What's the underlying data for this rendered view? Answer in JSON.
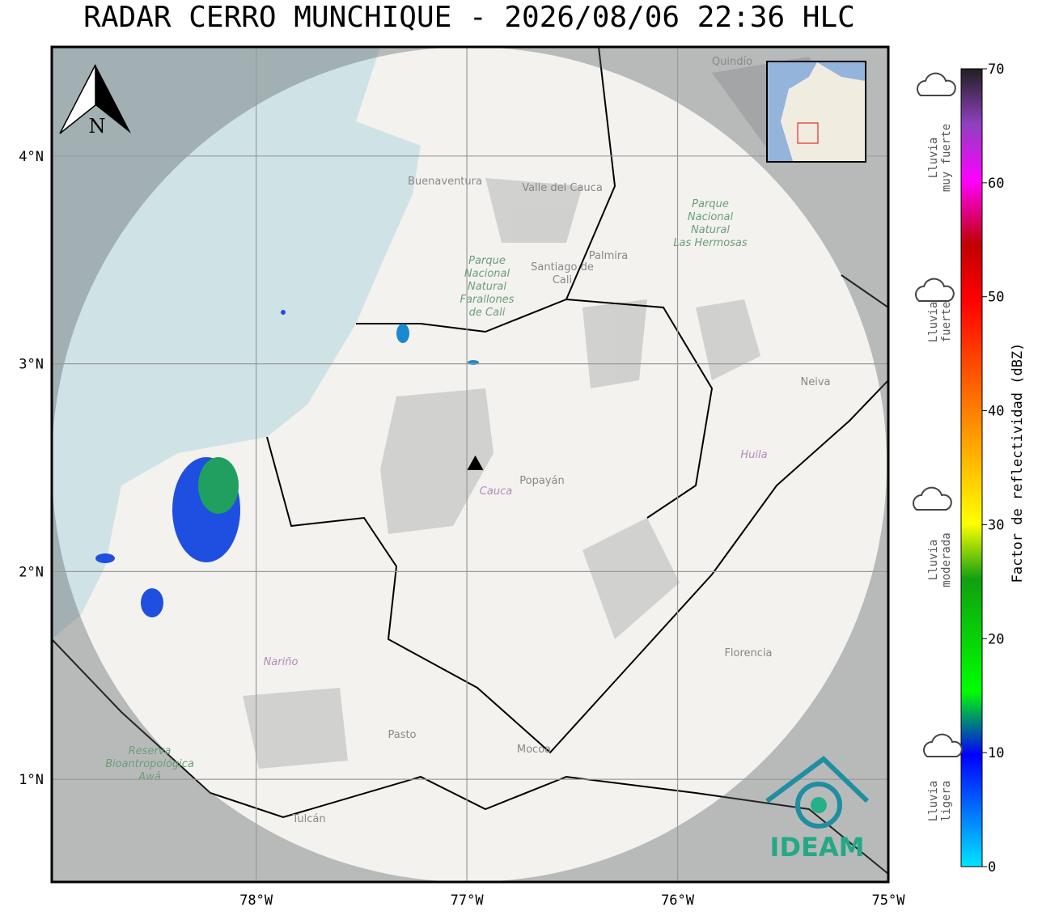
{
  "title": "RADAR CERRO MUNCHIQUE - 2026/08/06 22:36 HLC",
  "map": {
    "xlim": [
      -78.97,
      -75.0
    ],
    "ylim": [
      0.506,
      4.525
    ],
    "xticks": [
      {
        "value": -78,
        "label": "78°W"
      },
      {
        "value": -77,
        "label": "77°W"
      },
      {
        "value": -76,
        "label": "76°W"
      },
      {
        "value": -75,
        "label": "75°W"
      }
    ],
    "yticks": [
      {
        "value": 4,
        "label": "4°N"
      },
      {
        "value": 3,
        "label": "3°N"
      },
      {
        "value": 2,
        "label": "2°N"
      },
      {
        "value": 1,
        "label": "1°N"
      }
    ],
    "radar_site": {
      "lon": -76.96,
      "lat": 2.52
    },
    "north_label": "N",
    "logo": "IDEAM",
    "places": [
      {
        "lines": [
          "Quindío"
        ]
      },
      {
        "lines": [
          "Buenaventura"
        ]
      },
      {
        "lines": [
          "Valle del Cauca"
        ]
      },
      {
        "lines": [
          "Parque",
          "Nacional",
          "Natural",
          "Farallones",
          "de Cali"
        ]
      },
      {
        "lines": [
          "Santiago de",
          "Cali"
        ]
      },
      {
        "lines": [
          "Palmira"
        ]
      },
      {
        "lines": [
          "Parque",
          "Nacional",
          "Natural",
          "Las Hermosas"
        ]
      },
      {
        "lines": [
          "Neiva"
        ]
      },
      {
        "lines": [
          "Huila"
        ]
      },
      {
        "lines": [
          "Popayán"
        ]
      },
      {
        "lines": [
          "Cauca"
        ]
      },
      {
        "lines": [
          "Nariño"
        ]
      },
      {
        "lines": [
          "Pasto"
        ]
      },
      {
        "lines": [
          "Mocoa"
        ]
      },
      {
        "lines": [
          "Florencia"
        ]
      },
      {
        "lines": [
          "Tulcán"
        ]
      },
      {
        "lines": [
          "Reserva",
          "Bioantropológica",
          "Awá"
        ]
      }
    ]
  },
  "colorbar": {
    "label": "Factor de reflectividad (dBZ)",
    "lim": [
      0,
      70
    ],
    "ticks": [
      0,
      10,
      20,
      30,
      40,
      50,
      60,
      70
    ]
  },
  "rain_classes": [
    [
      "Lluvia",
      "muy fuerte"
    ],
    [
      "Lluvia",
      "fuerte"
    ],
    [
      "Lluvia",
      "moderada"
    ],
    [
      "Lluvia",
      "ligera"
    ]
  ]
}
